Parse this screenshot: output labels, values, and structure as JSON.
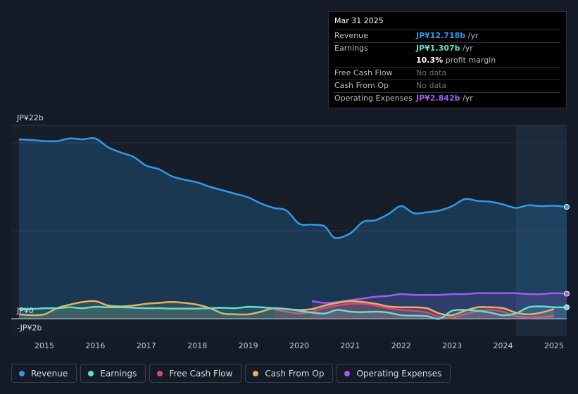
{
  "tooltip": {
    "date": "Mar 31 2025",
    "rows": {
      "revenue": {
        "label": "Revenue",
        "value": "JP¥12.718b",
        "unit": "/yr",
        "color": "#2f9ae6"
      },
      "earnings": {
        "label": "Earnings",
        "value": "JP¥1.307b",
        "unit": "/yr",
        "color": "#5fe0c8"
      },
      "margin": {
        "value": "10.3%",
        "unit": "profit margin"
      },
      "fcf": {
        "label": "Free Cash Flow",
        "value": "No data"
      },
      "cfo": {
        "label": "Cash From Op",
        "value": "No data"
      },
      "opex": {
        "label": "Operating Expenses",
        "value": "JP¥2.842b",
        "unit": "/yr",
        "color": "#a35cf0"
      }
    }
  },
  "legend": [
    {
      "key": "revenue",
      "label": "Revenue",
      "color": "#2f9ae6"
    },
    {
      "key": "earnings",
      "label": "Earnings",
      "color": "#5fe0c8"
    },
    {
      "key": "fcf",
      "label": "Free Cash Flow",
      "color": "#d4487c"
    },
    {
      "key": "cfo",
      "label": "Cash From Op",
      "color": "#e8b060"
    },
    {
      "key": "opex",
      "label": "Operating Expenses",
      "color": "#a35cf0"
    }
  ],
  "chart_data": {
    "type": "area",
    "title": "",
    "xlabel": "",
    "ylabel": "",
    "y_top_label": "JP¥22b",
    "y_zero_label": "JP¥0",
    "y_bottom_label": "-JP¥2b",
    "ylim": [
      -2,
      22
    ],
    "xlim": [
      2014.35,
      2025.25
    ],
    "x_ticks": [
      2015,
      2016,
      2017,
      2018,
      2019,
      2020,
      2021,
      2022,
      2023,
      2024,
      2025
    ],
    "x_tick_labels": [
      "2015",
      "2016",
      "2017",
      "2018",
      "2019",
      "2020",
      "2021",
      "2022",
      "2023",
      "2024",
      "2025"
    ],
    "highlight_start": 2024.25,
    "series": [
      {
        "name": "Revenue",
        "color": "#2f9ae6",
        "fill": true,
        "points": [
          [
            2014.5,
            20.4
          ],
          [
            2014.8,
            20.3
          ],
          [
            2015.0,
            20.2
          ],
          [
            2015.25,
            20.2
          ],
          [
            2015.5,
            20.5
          ],
          [
            2015.75,
            20.4
          ],
          [
            2016.0,
            20.5
          ],
          [
            2016.25,
            19.5
          ],
          [
            2016.5,
            18.9
          ],
          [
            2016.75,
            18.4
          ],
          [
            2017.0,
            17.4
          ],
          [
            2017.25,
            17.0
          ],
          [
            2017.5,
            16.2
          ],
          [
            2017.75,
            15.8
          ],
          [
            2018.0,
            15.5
          ],
          [
            2018.25,
            15.0
          ],
          [
            2018.5,
            14.6
          ],
          [
            2018.75,
            14.2
          ],
          [
            2019.0,
            13.8
          ],
          [
            2019.25,
            13.1
          ],
          [
            2019.5,
            12.6
          ],
          [
            2019.75,
            12.3
          ],
          [
            2020.0,
            10.8
          ],
          [
            2020.25,
            10.7
          ],
          [
            2020.5,
            10.5
          ],
          [
            2020.7,
            9.2
          ],
          [
            2021.0,
            9.7
          ],
          [
            2021.25,
            11.0
          ],
          [
            2021.5,
            11.2
          ],
          [
            2021.75,
            11.9
          ],
          [
            2022.0,
            12.8
          ],
          [
            2022.25,
            12.0
          ],
          [
            2022.5,
            12.1
          ],
          [
            2022.75,
            12.3
          ],
          [
            2023.0,
            12.8
          ],
          [
            2023.25,
            13.6
          ],
          [
            2023.5,
            13.4
          ],
          [
            2023.75,
            13.3
          ],
          [
            2024.0,
            13.0
          ],
          [
            2024.25,
            12.6
          ],
          [
            2024.5,
            12.9
          ],
          [
            2024.75,
            12.8
          ],
          [
            2025.0,
            12.85
          ],
          [
            2025.25,
            12.718
          ]
        ]
      },
      {
        "name": "Operating Expenses",
        "color": "#a35cf0",
        "fill": true,
        "points": [
          [
            2020.25,
            2.0
          ],
          [
            2020.5,
            1.8
          ],
          [
            2020.75,
            1.9
          ],
          [
            2021.0,
            2.1
          ],
          [
            2021.25,
            2.3
          ],
          [
            2021.5,
            2.5
          ],
          [
            2021.75,
            2.6
          ],
          [
            2022.0,
            2.8
          ],
          [
            2022.25,
            2.7
          ],
          [
            2022.5,
            2.7
          ],
          [
            2022.75,
            2.7
          ],
          [
            2023.0,
            2.8
          ],
          [
            2023.25,
            2.8
          ],
          [
            2023.5,
            2.9
          ],
          [
            2023.75,
            2.9
          ],
          [
            2024.0,
            2.9
          ],
          [
            2024.25,
            2.9
          ],
          [
            2024.5,
            2.8
          ],
          [
            2024.75,
            2.8
          ],
          [
            2025.0,
            2.9
          ],
          [
            2025.25,
            2.842
          ]
        ]
      },
      {
        "name": "Cash From Op",
        "color": "#e8b060",
        "fill": true,
        "points": [
          [
            2014.5,
            0.5
          ],
          [
            2014.75,
            0.4
          ],
          [
            2015.0,
            0.5
          ],
          [
            2015.25,
            1.2
          ],
          [
            2015.5,
            1.6
          ],
          [
            2015.75,
            1.9
          ],
          [
            2016.0,
            2.0
          ],
          [
            2016.25,
            1.5
          ],
          [
            2016.5,
            1.4
          ],
          [
            2016.75,
            1.5
          ],
          [
            2017.0,
            1.7
          ],
          [
            2017.25,
            1.8
          ],
          [
            2017.5,
            1.9
          ],
          [
            2017.75,
            1.8
          ],
          [
            2018.0,
            1.6
          ],
          [
            2018.25,
            1.2
          ],
          [
            2018.5,
            0.6
          ],
          [
            2018.75,
            0.5
          ],
          [
            2019.0,
            0.5
          ],
          [
            2019.25,
            0.8
          ],
          [
            2019.5,
            1.2
          ],
          [
            2019.75,
            1.1
          ],
          [
            2020.0,
            1.0
          ],
          [
            2020.25,
            1.1
          ],
          [
            2020.5,
            1.5
          ],
          [
            2020.75,
            1.8
          ],
          [
            2021.0,
            2.0
          ],
          [
            2021.25,
            1.9
          ],
          [
            2021.5,
            1.7
          ],
          [
            2021.75,
            1.4
          ],
          [
            2022.0,
            1.3
          ],
          [
            2022.25,
            1.3
          ],
          [
            2022.5,
            1.2
          ],
          [
            2022.75,
            0.6
          ],
          [
            2023.0,
            0.4
          ],
          [
            2023.25,
            0.9
          ],
          [
            2023.5,
            1.3
          ],
          [
            2023.75,
            1.3
          ],
          [
            2024.0,
            1.2
          ],
          [
            2024.25,
            0.7
          ],
          [
            2024.5,
            0.5
          ],
          [
            2024.75,
            0.7
          ],
          [
            2025.0,
            1.1
          ]
        ]
      },
      {
        "name": "Free Cash Flow",
        "color": "#d4487c",
        "fill": true,
        "points": [
          [
            2019.5,
            1.1
          ],
          [
            2019.75,
            0.8
          ],
          [
            2020.0,
            0.6
          ],
          [
            2020.25,
            0.8
          ],
          [
            2020.5,
            1.2
          ],
          [
            2020.75,
            1.5
          ],
          [
            2021.0,
            1.7
          ],
          [
            2021.25,
            1.7
          ],
          [
            2021.5,
            1.5
          ],
          [
            2021.75,
            1.2
          ],
          [
            2022.0,
            1.0
          ],
          [
            2022.25,
            0.9
          ],
          [
            2022.5,
            0.7
          ],
          [
            2022.75,
            0.2
          ],
          [
            2023.0,
            0.1
          ],
          [
            2023.25,
            0.5
          ],
          [
            2023.5,
            0.9
          ],
          [
            2023.75,
            1.0
          ],
          [
            2024.0,
            0.8
          ],
          [
            2024.25,
            0.3
          ],
          [
            2024.5,
            0.1
          ],
          [
            2024.75,
            0.2
          ],
          [
            2025.0,
            0.3
          ]
        ]
      },
      {
        "name": "Earnings",
        "color": "#5fe0c8",
        "fill": true,
        "points": [
          [
            2014.5,
            1.1
          ],
          [
            2014.75,
            1.1
          ],
          [
            2015.0,
            1.2
          ],
          [
            2015.25,
            1.2
          ],
          [
            2015.5,
            1.3
          ],
          [
            2015.75,
            1.2
          ],
          [
            2016.0,
            1.35
          ],
          [
            2016.25,
            1.3
          ],
          [
            2016.5,
            1.3
          ],
          [
            2016.75,
            1.25
          ],
          [
            2017.0,
            1.2
          ],
          [
            2017.25,
            1.2
          ],
          [
            2017.5,
            1.15
          ],
          [
            2017.75,
            1.15
          ],
          [
            2018.0,
            1.15
          ],
          [
            2018.25,
            1.2
          ],
          [
            2018.5,
            1.25
          ],
          [
            2018.75,
            1.2
          ],
          [
            2019.0,
            1.35
          ],
          [
            2019.25,
            1.3
          ],
          [
            2019.5,
            1.2
          ],
          [
            2019.75,
            1.1
          ],
          [
            2020.0,
            0.9
          ],
          [
            2020.25,
            0.7
          ],
          [
            2020.5,
            0.6
          ],
          [
            2020.75,
            1.0
          ],
          [
            2021.0,
            0.8
          ],
          [
            2021.25,
            0.75
          ],
          [
            2021.5,
            0.8
          ],
          [
            2021.75,
            0.7
          ],
          [
            2022.0,
            0.4
          ],
          [
            2022.25,
            0.35
          ],
          [
            2022.5,
            0.3
          ],
          [
            2022.75,
            0.0
          ],
          [
            2023.0,
            0.9
          ],
          [
            2023.25,
            1.0
          ],
          [
            2023.5,
            0.9
          ],
          [
            2023.75,
            0.7
          ],
          [
            2024.0,
            0.4
          ],
          [
            2024.25,
            0.6
          ],
          [
            2024.5,
            1.3
          ],
          [
            2024.75,
            1.4
          ],
          [
            2025.0,
            1.3
          ],
          [
            2025.25,
            1.307
          ]
        ]
      }
    ]
  }
}
